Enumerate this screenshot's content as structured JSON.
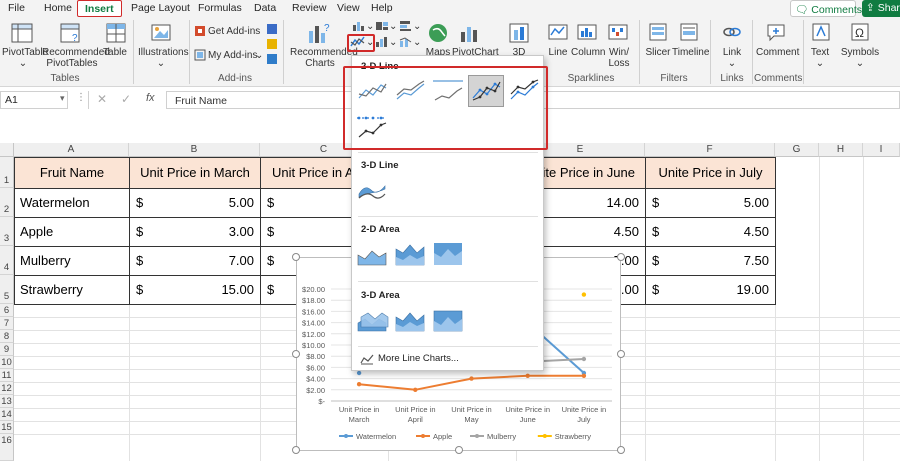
{
  "menu": {
    "tabs": [
      "File",
      "Home",
      "Insert",
      "Page Layout",
      "Formulas",
      "Data",
      "Review",
      "View",
      "Help"
    ],
    "active_tab": "Insert",
    "comments_label": "Comments",
    "share_label": "Share"
  },
  "ribbon": {
    "pivottable": "PivotTable",
    "recommended_pivottables": "Recommended PivotTables",
    "table": "Table",
    "illustrations": "Illustrations",
    "get_addins": "Get Add-ins",
    "my_addins": "My Add-ins",
    "recommended_charts": "Recommended Charts",
    "maps": "Maps",
    "pivotchart": "PivotChart",
    "three_d": "3D",
    "line": "Line",
    "column": "Column",
    "win_loss": "Win/ Loss",
    "slicer": "Slicer",
    "timeline": "Timeline",
    "link": "Link",
    "comment": "Comment",
    "text": "Text",
    "symbols": "Symbols",
    "groups": {
      "tables": "Tables",
      "addins": "Add-ins",
      "sparklines": "Sparklines",
      "filters": "Filters",
      "links": "Links",
      "comments": "Comments"
    }
  },
  "formula_bar": {
    "name_box": "A1",
    "fx": "fx",
    "content": "Fruit Name"
  },
  "columns": [
    "A",
    "B",
    "C",
    "D",
    "E",
    "F",
    "G",
    "H",
    "I"
  ],
  "rows": [
    "1",
    "2",
    "3",
    "4",
    "5",
    "6",
    "7",
    "8",
    "9",
    "10",
    "11",
    "12",
    "13",
    "14",
    "15",
    "16"
  ],
  "table": {
    "headers": [
      "Fruit Name",
      "Unit Price in March",
      "Unit Price in A",
      "Unite Price in June",
      "Unite Price in July"
    ],
    "currency": "$",
    "rows": [
      {
        "name": "Watermelon",
        "b": "5.00",
        "e": "14.00",
        "f": "5.00"
      },
      {
        "name": "Apple",
        "b": "3.00",
        "e": "4.50",
        "f": "4.50"
      },
      {
        "name": "Mulberry",
        "b": "7.00",
        "e": "7.00",
        "f": "7.50"
      },
      {
        "name": "Strawberry",
        "b": "15.00",
        "e": ".00",
        "f": "19.00"
      }
    ]
  },
  "dropdown": {
    "sec_2d_line": "2-D Line",
    "sec_3d_line": "3-D Line",
    "sec_2d_area": "2-D Area",
    "sec_3d_area": "3-D Area",
    "more": "More Line Charts..."
  },
  "chart_data": {
    "type": "line",
    "categories": [
      "Unit Price in March",
      "Unit Price in April",
      "Unit Price in May",
      "Unite Price in June",
      "Unite Price in July"
    ],
    "category_lines": [
      [
        "Unit Price in",
        "March"
      ],
      [
        "Unit Price in",
        "April"
      ],
      [
        "Unit Price in",
        "May"
      ],
      [
        "Unite Price in",
        "June"
      ],
      [
        "Unite Price in",
        "July"
      ]
    ],
    "ylim": [
      0,
      20
    ],
    "yticks": [
      "$-",
      "$2.00",
      "$4.00",
      "$6.00",
      "$8.00",
      "$10.00",
      "$12.00",
      "$14.00",
      "$16.00",
      "$18.00",
      "$20.00"
    ],
    "series": [
      {
        "name": "Watermelon",
        "color": "#5b9bd5",
        "values": [
          5.0,
          null,
          null,
          14.0,
          5.0
        ]
      },
      {
        "name": "Apple",
        "color": "#ed7d31",
        "values": [
          3.0,
          2.0,
          4.0,
          4.5,
          4.5
        ]
      },
      {
        "name": "Mulberry",
        "color": "#a5a5a5",
        "values": [
          7.0,
          null,
          null,
          7.0,
          7.5
        ]
      },
      {
        "name": "Strawberry",
        "color": "#ffc000",
        "values": [
          15.0,
          null,
          null,
          null,
          19.0
        ]
      }
    ],
    "legend": "bottom",
    "grid": true
  }
}
